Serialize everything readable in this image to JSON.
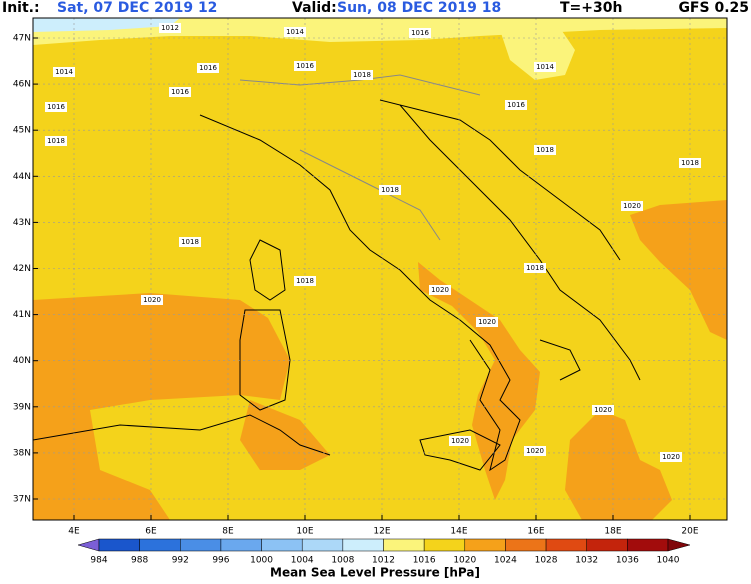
{
  "header": {
    "init_label": "Init.:",
    "init_time": "Sat, 07 DEC 2019  12",
    "valid_label": "Valid:",
    "valid_time": "Sun, 08 DEC 2019  18",
    "lead": "T=+30h",
    "model": "GFS 0.25"
  },
  "map": {
    "lat_labels": [
      "47N",
      "46N",
      "45N",
      "44N",
      "43N",
      "42N",
      "41N",
      "40N",
      "39N",
      "38N",
      "37N"
    ],
    "lon_labels": [
      "4E",
      "6E",
      "8E",
      "10E",
      "12E",
      "14E",
      "16E",
      "18E",
      "20E"
    ],
    "contour_labels": [
      1012,
      1014,
      1016,
      1014,
      1016,
      1016,
      1018,
      1014,
      1016,
      1016,
      1016,
      1018,
      1018,
      1018,
      1018,
      1020,
      1018,
      1018,
      1018,
      1020,
      1020,
      1020,
      1020,
      1020,
      1020,
      1020
    ]
  },
  "colorbar": {
    "title": "Mean Sea Level Pressure [hPa]",
    "ticks": [
      984,
      988,
      992,
      996,
      1000,
      1004,
      1008,
      1012,
      1016,
      1020,
      1024,
      1028,
      1032,
      1036,
      1040
    ],
    "colors": [
      "#7b5fd6",
      "#1a56cc",
      "#2c72dc",
      "#4a8ee6",
      "#6aa8ee",
      "#8cc2f4",
      "#acd8f8",
      "#cdeefc",
      "#fbf47b",
      "#f4d31b",
      "#f5a11a",
      "#ec7418",
      "#e04a12",
      "#c4240c",
      "#a20c0c",
      "#80060a"
    ]
  }
}
